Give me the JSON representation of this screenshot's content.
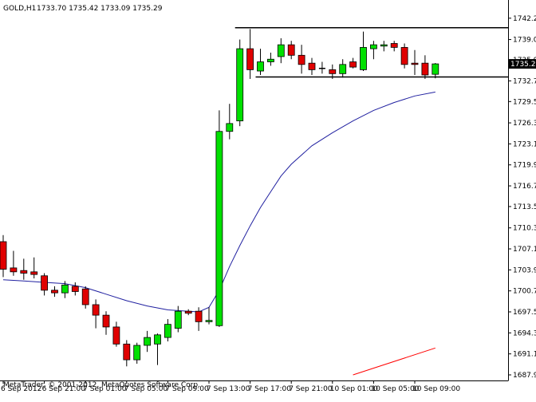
{
  "window": {
    "symbol_title": "GOLD,H1",
    "ohlc_readout": "1733.70 1735.42 1733.09 1735.29",
    "copyright": "MetaTrader, © 2001-2012, MetaQuotes Software Corp."
  },
  "colors": {
    "background": "#ffffff",
    "bull": "#00e000",
    "bear": "#e00000",
    "candle_outline": "#000000",
    "ma_fast": "#2020a0",
    "ma_slow": "#ff0000",
    "level_lines": "#000000",
    "price_tag_bg": "#000000",
    "price_tag_text": "#ffffff"
  },
  "chart_data": {
    "type": "candlestick",
    "symbol": "GOLD",
    "timeframe": "H1",
    "ylim": [
      1687.9,
      1743.2
    ],
    "y_ticks": [
      "1742.25",
      "1739.00",
      "1735.90",
      "1732.70",
      "1729.55",
      "1726.30",
      "1723.10",
      "1719.90",
      "1716.70",
      "1713.55",
      "1710.30",
      "1707.10",
      "1703.90",
      "1700.70",
      "1697.50",
      "1694.30",
      "1691.10",
      "1687.90"
    ],
    "x_ticks": [
      "6 Sep 2012",
      "6 Sep 21:00",
      "7 Sep 01:00",
      "7 Sep 05:00",
      "7 Sep 09:00",
      "7 Sep 13:00",
      "7 Sep 17:00",
      "7 Sep 21:00",
      "10 Sep 01:00",
      "10 Sep 05:00",
      "10 Sep 09:00"
    ],
    "current_price": "1735.29",
    "candles": [
      {
        "o": 1708.2,
        "h": 1709.2,
        "l": 1702.8,
        "c": 1704.0
      },
      {
        "o": 1704.2,
        "h": 1706.8,
        "l": 1703.0,
        "c": 1703.6
      },
      {
        "o": 1703.8,
        "h": 1705.6,
        "l": 1702.4,
        "c": 1703.4
      },
      {
        "o": 1703.6,
        "h": 1705.8,
        "l": 1702.6,
        "c": 1703.2
      },
      {
        "o": 1703.0,
        "h": 1703.4,
        "l": 1700.0,
        "c": 1700.8
      },
      {
        "o": 1700.8,
        "h": 1701.4,
        "l": 1699.8,
        "c": 1700.4
      },
      {
        "o": 1700.4,
        "h": 1702.2,
        "l": 1699.6,
        "c": 1701.6
      },
      {
        "o": 1701.4,
        "h": 1702.0,
        "l": 1700.0,
        "c": 1700.6
      },
      {
        "o": 1701.0,
        "h": 1701.4,
        "l": 1698.0,
        "c": 1698.6
      },
      {
        "o": 1698.6,
        "h": 1699.4,
        "l": 1695.0,
        "c": 1697.0
      },
      {
        "o": 1697.0,
        "h": 1697.6,
        "l": 1694.0,
        "c": 1695.2
      },
      {
        "o": 1695.2,
        "h": 1696.0,
        "l": 1692.2,
        "c": 1692.6
      },
      {
        "o": 1692.6,
        "h": 1693.2,
        "l": 1689.2,
        "c": 1690.2
      },
      {
        "o": 1690.2,
        "h": 1692.8,
        "l": 1689.6,
        "c": 1692.4
      },
      {
        "o": 1692.4,
        "h": 1694.6,
        "l": 1691.4,
        "c": 1693.6
      },
      {
        "o": 1692.6,
        "h": 1694.2,
        "l": 1689.4,
        "c": 1694.0
      },
      {
        "o": 1693.6,
        "h": 1696.4,
        "l": 1693.0,
        "c": 1695.6
      },
      {
        "o": 1695.0,
        "h": 1698.4,
        "l": 1694.4,
        "c": 1697.6
      },
      {
        "o": 1697.6,
        "h": 1697.9,
        "l": 1697.0,
        "c": 1697.3
      },
      {
        "o": 1697.6,
        "h": 1698.2,
        "l": 1694.6,
        "c": 1696.0
      },
      {
        "o": 1696.0,
        "h": 1698.2,
        "l": 1695.6,
        "c": 1696.2
      },
      {
        "o": 1695.4,
        "h": 1728.2,
        "l": 1695.2,
        "c": 1725.0
      },
      {
        "o": 1725.0,
        "h": 1729.2,
        "l": 1723.8,
        "c": 1726.2
      },
      {
        "o": 1726.6,
        "h": 1739.0,
        "l": 1725.8,
        "c": 1737.6
      },
      {
        "o": 1737.6,
        "h": 1740.6,
        "l": 1733.0,
        "c": 1734.4
      },
      {
        "o": 1734.2,
        "h": 1737.6,
        "l": 1733.6,
        "c": 1735.6
      },
      {
        "o": 1735.6,
        "h": 1737.0,
        "l": 1735.0,
        "c": 1736.0
      },
      {
        "o": 1736.4,
        "h": 1739.2,
        "l": 1735.4,
        "c": 1738.2
      },
      {
        "o": 1738.2,
        "h": 1738.8,
        "l": 1736.0,
        "c": 1736.6
      },
      {
        "o": 1736.6,
        "h": 1738.2,
        "l": 1733.8,
        "c": 1735.2
      },
      {
        "o": 1735.4,
        "h": 1736.2,
        "l": 1733.6,
        "c": 1734.4
      },
      {
        "o": 1734.6,
        "h": 1735.6,
        "l": 1733.8,
        "c": 1734.6
      },
      {
        "o": 1734.4,
        "h": 1735.2,
        "l": 1733.0,
        "c": 1733.8
      },
      {
        "o": 1733.8,
        "h": 1736.0,
        "l": 1733.2,
        "c": 1735.2
      },
      {
        "o": 1735.6,
        "h": 1736.2,
        "l": 1734.6,
        "c": 1734.8
      },
      {
        "o": 1734.4,
        "h": 1740.2,
        "l": 1734.2,
        "c": 1737.8
      },
      {
        "o": 1737.6,
        "h": 1738.8,
        "l": 1736.0,
        "c": 1738.2
      },
      {
        "o": 1738.0,
        "h": 1738.8,
        "l": 1737.2,
        "c": 1738.2
      },
      {
        "o": 1738.4,
        "h": 1738.8,
        "l": 1737.2,
        "c": 1737.8
      },
      {
        "o": 1737.8,
        "h": 1738.4,
        "l": 1734.6,
        "c": 1735.2
      },
      {
        "o": 1735.4,
        "h": 1737.4,
        "l": 1733.6,
        "c": 1735.2
      },
      {
        "o": 1735.4,
        "h": 1736.6,
        "l": 1733.0,
        "c": 1733.6
      },
      {
        "o": 1733.7,
        "h": 1735.42,
        "l": 1733.09,
        "c": 1735.29
      }
    ],
    "ma_fast": [
      {
        "i": 0,
        "v": 1702.4
      },
      {
        "i": 2,
        "v": 1702.2
      },
      {
        "i": 4,
        "v": 1702.0
      },
      {
        "i": 6,
        "v": 1701.8
      },
      {
        "i": 8,
        "v": 1701.2
      },
      {
        "i": 10,
        "v": 1700.2
      },
      {
        "i": 12,
        "v": 1699.2
      },
      {
        "i": 14,
        "v": 1698.4
      },
      {
        "i": 16,
        "v": 1697.8
      },
      {
        "i": 18,
        "v": 1697.6
      },
      {
        "i": 19,
        "v": 1697.5
      },
      {
        "i": 20,
        "v": 1698.2
      },
      {
        "i": 21,
        "v": 1700.8
      },
      {
        "i": 22,
        "v": 1704.4
      },
      {
        "i": 23,
        "v": 1707.6
      },
      {
        "i": 24,
        "v": 1710.6
      },
      {
        "i": 25,
        "v": 1713.4
      },
      {
        "i": 26,
        "v": 1715.8
      },
      {
        "i": 27,
        "v": 1718.2
      },
      {
        "i": 28,
        "v": 1720.0
      },
      {
        "i": 30,
        "v": 1722.8
      },
      {
        "i": 32,
        "v": 1724.8
      },
      {
        "i": 34,
        "v": 1726.6
      },
      {
        "i": 36,
        "v": 1728.2
      },
      {
        "i": 38,
        "v": 1729.4
      },
      {
        "i": 40,
        "v": 1730.4
      },
      {
        "i": 42,
        "v": 1731.0
      }
    ],
    "ma_slow": [
      {
        "i": 34,
        "v": 1687.9
      },
      {
        "i": 42,
        "v": 1692.0
      }
    ],
    "level_lines": {
      "top": 1740.8,
      "bottom": 1733.3,
      "top_start_index": 23,
      "bottom_start_index": 25
    }
  }
}
